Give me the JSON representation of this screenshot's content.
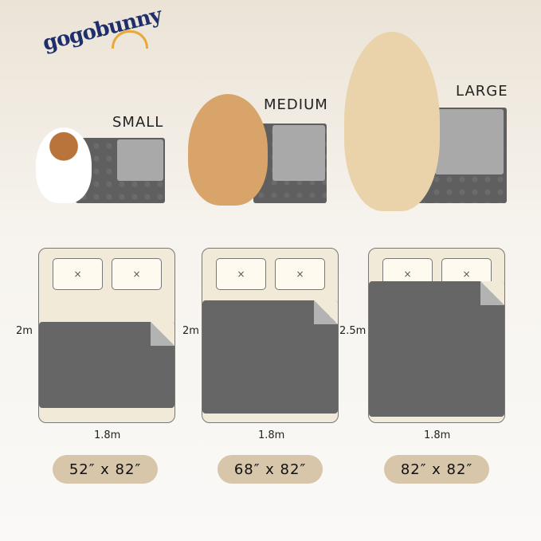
{
  "brand": {
    "logo_text": "gogobunny",
    "accent": "#e8a93a",
    "color": "#1f2f6b"
  },
  "sizes": [
    {
      "label": "SMALL",
      "height": "2m",
      "width": "1.8m",
      "dimensions": "52″ x 82″"
    },
    {
      "label": "MEDIUM",
      "height": "2m",
      "width": "1.8m",
      "dimensions": "68″ x 82″"
    },
    {
      "label": "LARGE",
      "height": "2.5m",
      "width": "1.8m",
      "dimensions": "82″ x 82″"
    }
  ],
  "pillow_mark": "×",
  "colors": {
    "pad": "#666666",
    "pad_reverse": "#b3b3b3",
    "bed": "#f2ead9",
    "pill": "#d8c6aa"
  }
}
